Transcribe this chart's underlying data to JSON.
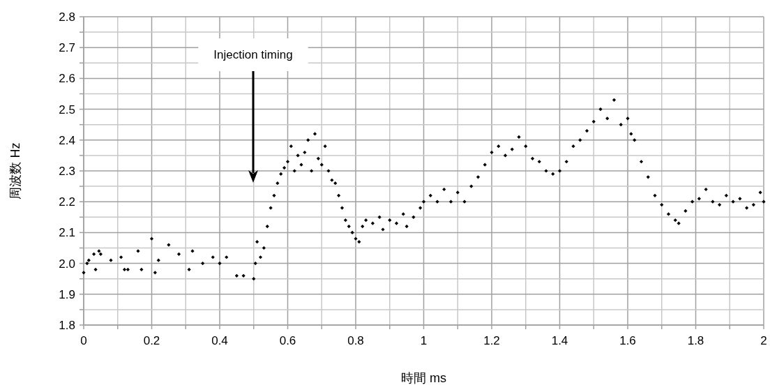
{
  "chart_data": {
    "type": "scatter",
    "xlabel": "時間 ms",
    "ylabel": "周波数 Hz",
    "marker": "diamond",
    "grid": true,
    "color": "#000000",
    "annotations": [
      "Injection timing"
    ],
    "xlim": [
      0,
      2
    ],
    "ylim": [
      1.8,
      2.8
    ],
    "xticks": [
      0,
      {
        "value": 0.1,
        "label": null
      },
      0.2,
      {
        "value": 0.3,
        "label": null
      },
      0.4,
      {
        "value": 0.5,
        "label": null
      },
      0.6,
      {
        "value": 0.7,
        "label": null
      },
      0.8,
      {
        "value": 0.9,
        "label": null
      },
      1,
      {
        "value": 1.1,
        "label": null
      },
      1.2,
      {
        "value": 1.3,
        "label": null
      },
      1.4,
      {
        "value": 1.5,
        "label": null
      },
      1.6,
      {
        "value": 1.7,
        "label": null
      },
      1.8,
      {
        "value": 1.9,
        "label": null
      },
      2
    ],
    "yticks": [
      1.8,
      {
        "value": 1.85,
        "label": null
      },
      1.9,
      {
        "value": 1.95,
        "label": null
      },
      {
        "value": 2,
        "label": "2.0"
      },
      {
        "value": 2.05,
        "label": null
      },
      2.1,
      {
        "value": 2.15,
        "label": null
      },
      2.2,
      {
        "value": 2.25,
        "label": null
      },
      2.3,
      {
        "value": 2.35,
        "label": null
      },
      2.4,
      {
        "value": 2.45,
        "label": null
      },
      2.5,
      {
        "value": 2.55,
        "label": null
      },
      2.6,
      {
        "value": 2.65,
        "label": null
      },
      2.7,
      {
        "value": 2.75,
        "label": null
      },
      2.8
    ],
    "x": [
      0,
      0.01,
      0.015,
      0.03,
      0.035,
      0.045,
      0.05,
      0.08,
      0.11,
      0.12,
      0.13,
      0.16,
      0.17,
      0.2,
      0.21,
      0.22,
      0.25,
      0.28,
      0.31,
      0.32,
      0.35,
      0.38,
      0.4,
      0.42,
      0.45,
      0.47,
      0.5,
      0.505,
      0.51,
      0.52,
      0.53,
      0.54,
      0.55,
      0.56,
      0.57,
      0.58,
      0.59,
      0.6,
      0.61,
      0.62,
      0.63,
      0.64,
      0.65,
      0.66,
      0.67,
      0.68,
      0.69,
      0.7,
      0.71,
      0.72,
      0.73,
      0.74,
      0.75,
      0.76,
      0.77,
      0.78,
      0.79,
      0.8,
      0.81,
      0.82,
      0.83,
      0.85,
      0.87,
      0.88,
      0.9,
      0.92,
      0.94,
      0.95,
      0.97,
      0.99,
      1,
      1.02,
      1.04,
      1.06,
      1.08,
      1.1,
      1.12,
      1.14,
      1.16,
      1.18,
      1.2,
      1.22,
      1.24,
      1.26,
      1.28,
      1.3,
      1.32,
      1.34,
      1.36,
      1.38,
      1.4,
      1.42,
      1.44,
      1.46,
      1.48,
      1.5,
      1.52,
      1.54,
      1.56,
      1.58,
      1.6,
      1.61,
      1.62,
      1.64,
      1.66,
      1.68,
      1.7,
      1.72,
      1.74,
      1.75,
      1.77,
      1.79,
      1.81,
      1.83,
      1.85,
      1.87,
      1.89,
      1.91,
      1.93,
      1.95,
      1.97,
      1.99,
      2
    ],
    "values": [
      1.97,
      2.0,
      2.01,
      2.03,
      1.98,
      2.04,
      2.03,
      2.01,
      2.02,
      1.98,
      1.98,
      2.04,
      1.98,
      2.08,
      1.97,
      2.01,
      2.06,
      2.03,
      1.98,
      2.04,
      2.0,
      2.02,
      2.0,
      2.02,
      1.96,
      1.96,
      1.95,
      2.0,
      2.07,
      2.02,
      2.05,
      2.12,
      2.18,
      2.22,
      2.26,
      2.29,
      2.31,
      2.33,
      2.38,
      2.3,
      2.35,
      2.32,
      2.36,
      2.4,
      2.3,
      2.42,
      2.34,
      2.32,
      2.38,
      2.3,
      2.27,
      2.26,
      2.22,
      2.18,
      2.14,
      2.12,
      2.1,
      2.08,
      2.07,
      2.12,
      2.14,
      2.13,
      2.15,
      2.11,
      2.14,
      2.13,
      2.16,
      2.12,
      2.15,
      2.18,
      2.2,
      2.22,
      2.2,
      2.24,
      2.2,
      2.23,
      2.2,
      2.25,
      2.28,
      2.32,
      2.36,
      2.38,
      2.35,
      2.37,
      2.41,
      2.38,
      2.34,
      2.33,
      2.3,
      2.29,
      2.3,
      2.33,
      2.38,
      2.4,
      2.43,
      2.46,
      2.5,
      2.47,
      2.53,
      2.45,
      2.47,
      2.42,
      2.4,
      2.33,
      2.28,
      2.22,
      2.19,
      2.16,
      2.14,
      2.13,
      2.17,
      2.2,
      2.21,
      2.24,
      2.2,
      2.19,
      2.22,
      2.2,
      2.21,
      2.18,
      2.19,
      2.23,
      2.2
    ]
  }
}
